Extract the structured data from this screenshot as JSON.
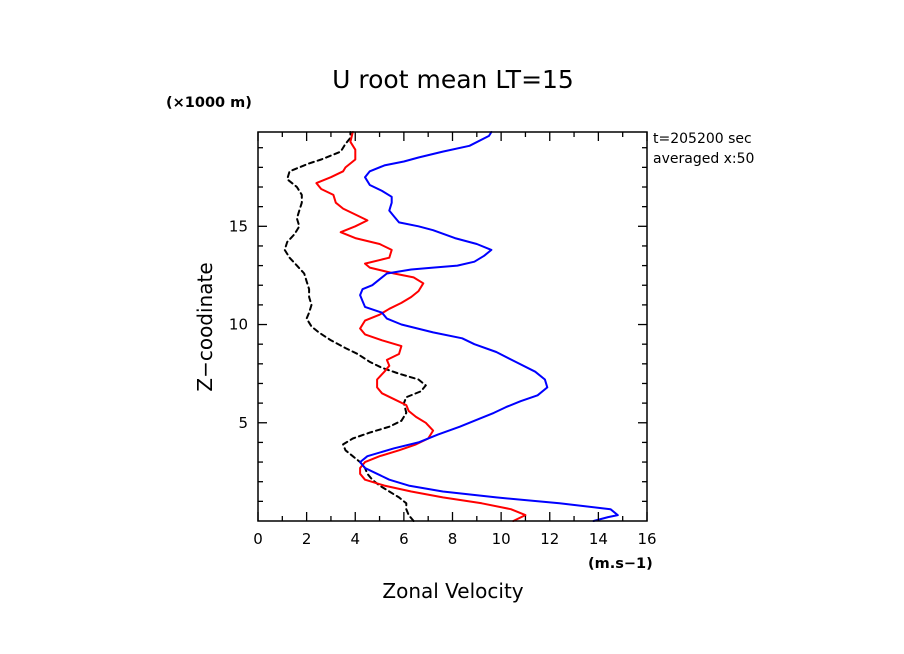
{
  "chart_data": {
    "type": "line",
    "title": "U root mean LT=15",
    "xlabel": "Zonal Velocity",
    "ylabel": "Z−coodinate",
    "x_unit": "(m.s−1)",
    "y_unit": "(×1000 m)",
    "annotations": [
      "t=205200 sec",
      "averaged  x:50"
    ],
    "xlim": [
      0,
      16
    ],
    "ylim": [
      0,
      19.8
    ],
    "xticks": [
      0,
      2,
      4,
      6,
      8,
      10,
      12,
      14,
      16
    ],
    "xtick_labels": [
      "0",
      "2",
      "4",
      "6",
      "8",
      "10",
      "12",
      "14",
      "16"
    ],
    "yticks": [
      5,
      10,
      15
    ],
    "ytick_labels": [
      "5",
      "10",
      "15"
    ],
    "grid": false,
    "legend": "none",
    "series": [
      {
        "color": "#000000",
        "dash": true,
        "points": [
          [
            6.4,
            0.0
          ],
          [
            6.2,
            0.3
          ],
          [
            6.1,
            0.6
          ],
          [
            6.1,
            0.9
          ],
          [
            5.8,
            1.2
          ],
          [
            5.4,
            1.5
          ],
          [
            5.0,
            1.8
          ],
          [
            4.7,
            2.1
          ],
          [
            4.5,
            2.4
          ],
          [
            4.4,
            2.7
          ],
          [
            4.2,
            3.0
          ],
          [
            3.9,
            3.3
          ],
          [
            3.6,
            3.6
          ],
          [
            3.5,
            3.9
          ],
          [
            3.9,
            4.2
          ],
          [
            4.6,
            4.5
          ],
          [
            5.4,
            4.8
          ],
          [
            5.9,
            5.1
          ],
          [
            6.1,
            5.5
          ],
          [
            6.0,
            6.0
          ],
          [
            6.1,
            6.3
          ],
          [
            6.7,
            6.6
          ],
          [
            6.9,
            6.9
          ],
          [
            6.6,
            7.2
          ],
          [
            5.8,
            7.5
          ],
          [
            5.1,
            7.8
          ],
          [
            4.6,
            8.1
          ],
          [
            4.1,
            8.5
          ],
          [
            3.6,
            8.8
          ],
          [
            3.0,
            9.2
          ],
          [
            2.5,
            9.6
          ],
          [
            2.2,
            9.9
          ],
          [
            2.0,
            10.3
          ],
          [
            2.1,
            10.6
          ],
          [
            2.2,
            11.0
          ],
          [
            2.1,
            11.4
          ],
          [
            2.1,
            11.8
          ],
          [
            2.0,
            12.2
          ],
          [
            1.9,
            12.6
          ],
          [
            1.6,
            13.0
          ],
          [
            1.3,
            13.4
          ],
          [
            1.1,
            13.8
          ],
          [
            1.2,
            14.2
          ],
          [
            1.5,
            14.6
          ],
          [
            1.7,
            15.0
          ],
          [
            1.6,
            15.4
          ],
          [
            1.7,
            15.8
          ],
          [
            1.8,
            16.2
          ],
          [
            1.8,
            16.6
          ],
          [
            1.6,
            17.0
          ],
          [
            1.2,
            17.4
          ],
          [
            1.3,
            17.8
          ],
          [
            1.7,
            18.0
          ],
          [
            2.1,
            18.2
          ],
          [
            2.6,
            18.4
          ],
          [
            3.0,
            18.6
          ],
          [
            3.4,
            18.8
          ],
          [
            3.6,
            19.2
          ],
          [
            3.8,
            19.5
          ],
          [
            3.8,
            19.8
          ]
        ]
      },
      {
        "color": "#ff0000",
        "dash": false,
        "points": [
          [
            10.5,
            0.0
          ],
          [
            11.0,
            0.3
          ],
          [
            10.4,
            0.6
          ],
          [
            9.2,
            0.9
          ],
          [
            7.6,
            1.2
          ],
          [
            6.3,
            1.5
          ],
          [
            5.2,
            1.8
          ],
          [
            4.4,
            2.1
          ],
          [
            4.2,
            2.4
          ],
          [
            4.2,
            2.7
          ],
          [
            4.4,
            3.0
          ],
          [
            5.0,
            3.3
          ],
          [
            5.8,
            3.6
          ],
          [
            6.5,
            3.9
          ],
          [
            7.0,
            4.2
          ],
          [
            7.2,
            4.6
          ],
          [
            6.9,
            5.0
          ],
          [
            6.5,
            5.3
          ],
          [
            6.2,
            5.6
          ],
          [
            6.1,
            5.9
          ],
          [
            5.6,
            6.2
          ],
          [
            5.1,
            6.5
          ],
          [
            4.9,
            6.8
          ],
          [
            4.9,
            7.2
          ],
          [
            5.2,
            7.6
          ],
          [
            5.4,
            7.9
          ],
          [
            5.3,
            8.2
          ],
          [
            5.8,
            8.5
          ],
          [
            5.9,
            8.9
          ],
          [
            5.1,
            9.2
          ],
          [
            4.4,
            9.5
          ],
          [
            4.2,
            9.8
          ],
          [
            4.4,
            10.2
          ],
          [
            5.0,
            10.5
          ],
          [
            5.4,
            10.8
          ],
          [
            5.9,
            11.1
          ],
          [
            6.3,
            11.4
          ],
          [
            6.6,
            11.7
          ],
          [
            6.8,
            12.1
          ],
          [
            6.4,
            12.4
          ],
          [
            5.6,
            12.6
          ],
          [
            4.6,
            12.9
          ],
          [
            4.4,
            13.1
          ],
          [
            5.4,
            13.4
          ],
          [
            5.5,
            13.8
          ],
          [
            5.0,
            14.1
          ],
          [
            4.0,
            14.4
          ],
          [
            3.4,
            14.7
          ],
          [
            4.0,
            15.0
          ],
          [
            4.5,
            15.3
          ],
          [
            4.0,
            15.6
          ],
          [
            3.5,
            15.9
          ],
          [
            3.2,
            16.2
          ],
          [
            3.1,
            16.6
          ],
          [
            2.6,
            16.9
          ],
          [
            2.4,
            17.2
          ],
          [
            3.0,
            17.5
          ],
          [
            3.5,
            17.8
          ],
          [
            3.6,
            18.0
          ],
          [
            4.0,
            18.4
          ],
          [
            4.0,
            18.9
          ],
          [
            3.8,
            19.3
          ],
          [
            3.9,
            19.8
          ]
        ]
      },
      {
        "color": "#0000ff",
        "dash": false,
        "points": [
          [
            13.8,
            0.0
          ],
          [
            14.4,
            0.2
          ],
          [
            14.8,
            0.3
          ],
          [
            14.5,
            0.6
          ],
          [
            12.4,
            0.9
          ],
          [
            9.8,
            1.2
          ],
          [
            7.6,
            1.5
          ],
          [
            6.2,
            1.8
          ],
          [
            5.4,
            2.1
          ],
          [
            4.9,
            2.4
          ],
          [
            4.4,
            2.7
          ],
          [
            4.2,
            3.0
          ],
          [
            4.5,
            3.3
          ],
          [
            5.6,
            3.7
          ],
          [
            6.6,
            4.0
          ],
          [
            7.4,
            4.4
          ],
          [
            8.3,
            4.8
          ],
          [
            9.1,
            5.2
          ],
          [
            9.7,
            5.5
          ],
          [
            10.2,
            5.8
          ],
          [
            10.8,
            6.1
          ],
          [
            11.5,
            6.4
          ],
          [
            11.9,
            6.8
          ],
          [
            11.8,
            7.2
          ],
          [
            11.4,
            7.6
          ],
          [
            10.6,
            8.1
          ],
          [
            9.8,
            8.6
          ],
          [
            8.9,
            9.0
          ],
          [
            8.4,
            9.3
          ],
          [
            7.2,
            9.6
          ],
          [
            5.9,
            10.0
          ],
          [
            5.3,
            10.3
          ],
          [
            5.1,
            10.6
          ],
          [
            4.4,
            10.9
          ],
          [
            4.3,
            11.2
          ],
          [
            4.2,
            11.5
          ],
          [
            4.3,
            11.8
          ],
          [
            4.7,
            12.0
          ],
          [
            5.0,
            12.3
          ],
          [
            5.3,
            12.6
          ],
          [
            6.3,
            12.8
          ],
          [
            7.2,
            12.9
          ],
          [
            8.2,
            13.0
          ],
          [
            8.9,
            13.2
          ],
          [
            9.3,
            13.5
          ],
          [
            9.6,
            13.8
          ],
          [
            9.0,
            14.1
          ],
          [
            8.1,
            14.4
          ],
          [
            7.2,
            14.8
          ],
          [
            6.6,
            15.0
          ],
          [
            5.8,
            15.2
          ],
          [
            5.6,
            15.5
          ],
          [
            5.4,
            15.8
          ],
          [
            5.5,
            16.2
          ],
          [
            5.5,
            16.5
          ],
          [
            5.1,
            16.8
          ],
          [
            4.6,
            17.1
          ],
          [
            4.4,
            17.5
          ],
          [
            4.6,
            17.8
          ],
          [
            5.2,
            18.1
          ],
          [
            6.0,
            18.3
          ],
          [
            6.6,
            18.5
          ],
          [
            7.6,
            18.8
          ],
          [
            8.7,
            19.1
          ],
          [
            9.5,
            19.6
          ],
          [
            9.6,
            19.8
          ]
        ]
      }
    ]
  }
}
